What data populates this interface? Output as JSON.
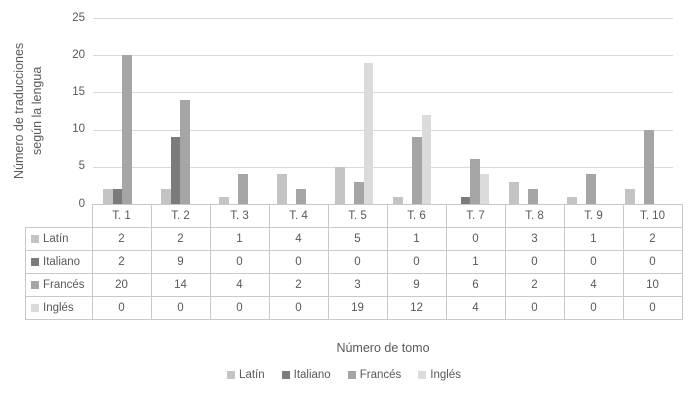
{
  "chart_data": {
    "type": "bar",
    "title": "",
    "categories": [
      "T. 1",
      "T. 2",
      "T. 3",
      "T. 4",
      "T. 5",
      "T. 6",
      "T. 7",
      "T. 8",
      "T. 9",
      "T. 10"
    ],
    "series": [
      {
        "name": "Latín",
        "color": "#c4c4c4",
        "values": [
          2,
          2,
          1,
          4,
          5,
          1,
          0,
          3,
          1,
          2
        ]
      },
      {
        "name": "Italiano",
        "color": "#7b7b7b",
        "values": [
          2,
          9,
          0,
          0,
          0,
          0,
          1,
          0,
          0,
          0
        ]
      },
      {
        "name": "Francés",
        "color": "#a5a5a5",
        "values": [
          20,
          14,
          4,
          2,
          3,
          9,
          6,
          2,
          4,
          10
        ]
      },
      {
        "name": "Inglés",
        "color": "#dbdbdb",
        "values": [
          0,
          0,
          0,
          0,
          19,
          12,
          4,
          0,
          0,
          0
        ]
      }
    ],
    "xlabel": "Número de tomo",
    "ylabel": "Número de traducciones según la lengua",
    "ylabel_lines": [
      "Número de traducciones",
      "según la lengua"
    ],
    "ylim": [
      0,
      25
    ],
    "yticks": [
      0,
      5,
      10,
      15,
      20,
      25
    ],
    "grid": true,
    "legend_position": "bottom",
    "data_table_shown": true
  },
  "colors": {
    "axis_text": "#595959",
    "gridline": "#d9d9d9",
    "table_border": "#c9c9c9",
    "background": "#ffffff"
  }
}
